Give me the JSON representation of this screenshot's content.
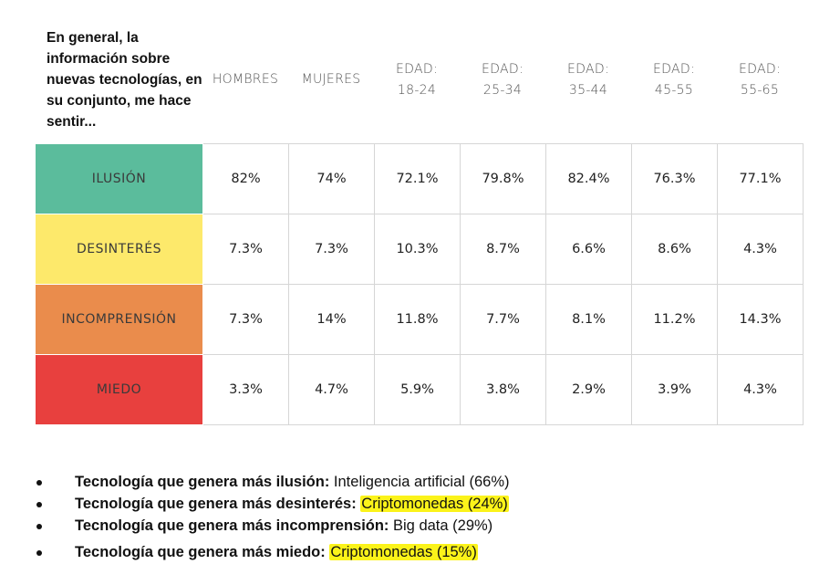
{
  "question": "En general, la información sobre nuevas tecnologías, en su conjunto, me hace sentir...",
  "columns": [
    {
      "line1": "HOMBRES",
      "line2": ""
    },
    {
      "line1": "MUJERES",
      "line2": ""
    },
    {
      "line1": "EDAD:",
      "line2": "18-24"
    },
    {
      "line1": "EDAD:",
      "line2": "25-34"
    },
    {
      "line1": "EDAD:",
      "line2": "35-44"
    },
    {
      "line1": "EDAD:",
      "line2": "45-55"
    },
    {
      "line1": "EDAD:",
      "line2": "55-65"
    }
  ],
  "rows": [
    {
      "label": "ILUSIÓN",
      "color": "#5bbc9c",
      "values": [
        "82%",
        "74%",
        "72.1%",
        "79.8%",
        "82.4%",
        "76.3%",
        "77.1%"
      ]
    },
    {
      "label": "DESINTERÉS",
      "color": "#fde96b",
      "values": [
        "7.3%",
        "7.3%",
        "10.3%",
        "8.7%",
        "6.6%",
        "8.6%",
        "4.3%"
      ]
    },
    {
      "label": "INCOMPRENSIÓN",
      "color": "#ea8c4c",
      "values": [
        "7.3%",
        "14%",
        "11.8%",
        "7.7%",
        "8.1%",
        "11.2%",
        "14.3%"
      ]
    },
    {
      "label": "MIEDO",
      "color": "#e8403e",
      "values": [
        "3.3%",
        "4.7%",
        "5.9%",
        "3.8%",
        "2.9%",
        "3.9%",
        "4.3%"
      ]
    }
  ],
  "notes": [
    {
      "bold": "Tecnología que genera más ilusión: ",
      "text": "Inteligencia artificial (66%)",
      "highlight": false
    },
    {
      "bold": "Tecnología que genera más desinterés: ",
      "text": "Criptomonedas (24%)",
      "highlight": true
    },
    {
      "bold": "Tecnología que genera más incomprensión: ",
      "text": "Big data (29%)",
      "highlight": false
    },
    {
      "bold": "Tecnología que genera más miedo: ",
      "text": "Criptomonedas (15%)",
      "highlight": true
    }
  ],
  "colors": {
    "highlight": "#fbf31a",
    "border": "#d6d6d6"
  }
}
